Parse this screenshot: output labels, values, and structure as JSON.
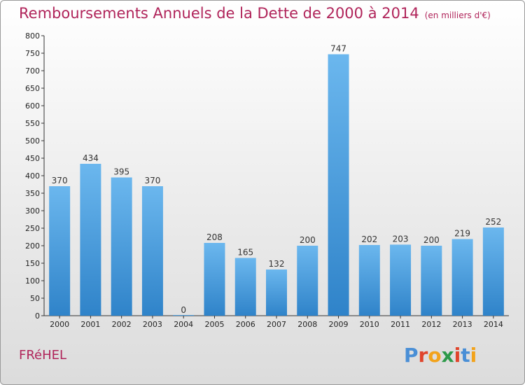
{
  "title": "Remboursements Annuels de la Dette de 2000 à 2014",
  "subtitle": "(en milliers d'€)",
  "town": "FRéHEL",
  "logo_text": "Proxiti",
  "colors": {
    "title": "#b0245a",
    "bar_top": "#6bb7ee",
    "bar_bottom": "#2f83c9"
  },
  "chart_data": {
    "type": "bar",
    "title": "Remboursements Annuels de la Dette de 2000 à 2014",
    "subtitle": "(en milliers d'€)",
    "categories": [
      "2000",
      "2001",
      "2002",
      "2003",
      "2004",
      "2005",
      "2006",
      "2007",
      "2008",
      "2009",
      "2010",
      "2011",
      "2012",
      "2013",
      "2014"
    ],
    "values": [
      370,
      434,
      395,
      370,
      0,
      208,
      165,
      132,
      200,
      747,
      202,
      203,
      200,
      219,
      252
    ],
    "ylim": [
      0,
      800
    ],
    "yticks": [
      0,
      50,
      100,
      150,
      200,
      250,
      300,
      350,
      400,
      450,
      500,
      550,
      600,
      650,
      700,
      750,
      800
    ],
    "grid": false,
    "legend": "none"
  }
}
